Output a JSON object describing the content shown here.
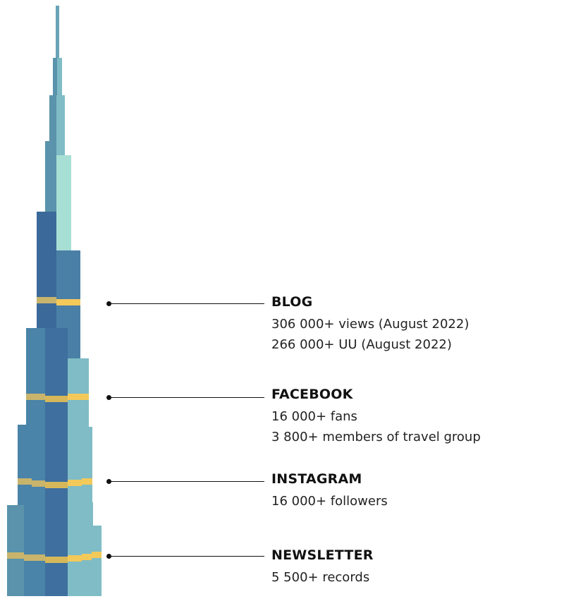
{
  "colors": {
    "dark_blue": "#3b6a9a",
    "mid_blue": "#4a7fa6",
    "teal": "#6aa3b8",
    "light_teal": "#7fbcc6",
    "mint": "#a8dfd4",
    "gold": "#c9b46b",
    "yellow": "#f3c95a",
    "leader": "#111111"
  },
  "sections": [
    {
      "title": "BLOG",
      "lines": [
        "306 000+ views (August 2022)",
        "266 000+ UU (August 2022)"
      ]
    },
    {
      "title": "FACEBOOK",
      "lines": [
        "16 000+ fans",
        "3 800+ members of travel group"
      ]
    },
    {
      "title": "INSTAGRAM",
      "lines": [
        "16 000+ followers"
      ]
    },
    {
      "title": "NEWSLETTER",
      "lines": [
        "5 500+ records"
      ]
    }
  ]
}
